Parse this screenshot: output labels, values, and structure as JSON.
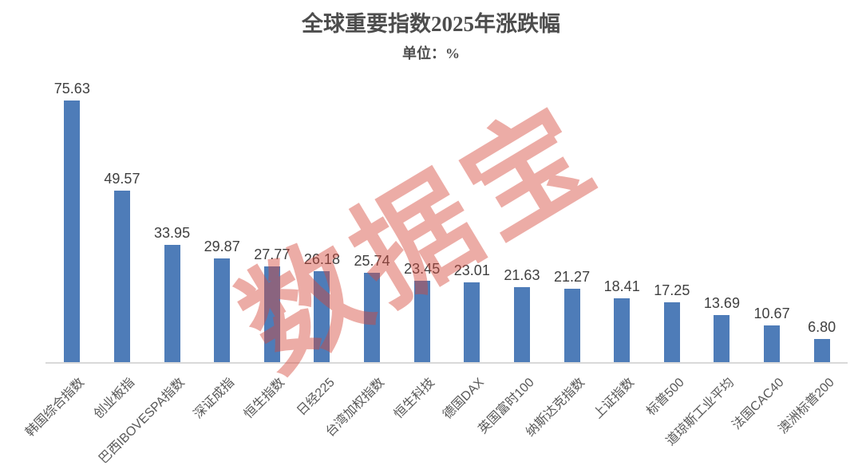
{
  "header": {
    "title": "全球重要指数2025年涨跌幅",
    "subtitle": "单位：%"
  },
  "watermark": {
    "text": "数据宝",
    "color": "rgba(213,70,58,0.45)",
    "rotation_deg": -31
  },
  "colors": {
    "bar": "#4E7CB8",
    "title_text": "#4D4D4D",
    "value_label_text": "#3F3F3F",
    "category_label_text": "#595959",
    "axis_line": "#D9D9D9"
  },
  "chart_data": {
    "type": "bar",
    "title": "全球重要指数2025年涨跌幅",
    "subtitle": "单位：%",
    "unit": "%",
    "categories": [
      "韩国综合指数",
      "创业板指",
      "巴西IBOVESPA指数",
      "深证成指",
      "恒生指数",
      "日经225",
      "台湾加权指数",
      "恒生科技",
      "德国DAX",
      "英国富时100",
      "纳斯达克指数",
      "上证指数",
      "标普500",
      "道琼斯工业平均",
      "法国CAC40",
      "澳洲标普200"
    ],
    "values": [
      75.63,
      49.57,
      33.95,
      29.87,
      27.77,
      26.18,
      25.74,
      23.45,
      23.01,
      21.63,
      21.27,
      18.41,
      17.25,
      13.69,
      10.67,
      6.8
    ],
    "value_labels": [
      "75.63",
      "49.57",
      "33.95",
      "29.87",
      "27.77",
      "26.18",
      "25.74",
      "23.45",
      "23.01",
      "21.63",
      "21.27",
      "18.41",
      "17.25",
      "13.69",
      "10.67",
      "6.80"
    ],
    "xlabel": "",
    "ylabel": "",
    "ylim": [
      0,
      80
    ],
    "grid": false,
    "legend": false,
    "data_labels": true,
    "category_label_rotation_deg": 45
  }
}
